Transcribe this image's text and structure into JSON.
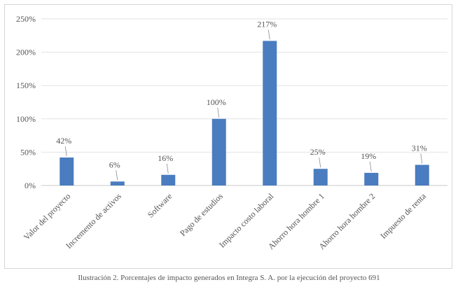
{
  "chart_data": {
    "type": "bar",
    "categories": [
      "Valor del proyecto",
      "Incremento de activos",
      "Software",
      "Pago de estudios",
      "Impacto costo laboral",
      "Ahorro hora hombre 1",
      "Ahorro hora hombre 2",
      "Impuesto de renta"
    ],
    "values": [
      42,
      6,
      16,
      100,
      217,
      25,
      19,
      31
    ],
    "data_labels": [
      "42%",
      "6%",
      "16%",
      "100%",
      "217%",
      "25%",
      "19%",
      "31%"
    ],
    "y_ticks": [
      0,
      50,
      100,
      150,
      200,
      250
    ],
    "y_tick_labels": [
      "0%",
      "50%",
      "100%",
      "150%",
      "200%",
      "250%"
    ],
    "ylim": [
      0,
      250
    ],
    "grid": true,
    "bar_color": "#4a7cc0",
    "title": "",
    "xlabel": "",
    "ylabel": ""
  },
  "caption": "Ilustración 2. Porcentajes de impacto generados en Integra S. A. por la ejecución del proyecto 691"
}
